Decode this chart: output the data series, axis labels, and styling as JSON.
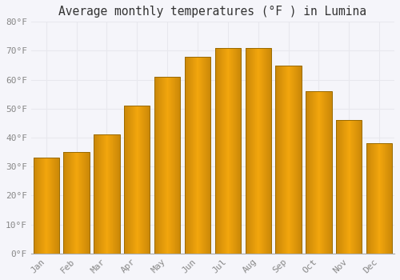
{
  "title": "Average monthly temperatures (°F ) in Lumina",
  "months": [
    "Jan",
    "Feb",
    "Mar",
    "Apr",
    "May",
    "Jun",
    "Jul",
    "Aug",
    "Sep",
    "Oct",
    "Nov",
    "Dec"
  ],
  "values": [
    33,
    35,
    41,
    51,
    61,
    68,
    71,
    71,
    65,
    56,
    46,
    38
  ],
  "bar_color_center": "#FFD040",
  "bar_color_edge": "#E8900A",
  "background_color": "#f5f5fa",
  "grid_color": "#e8e8ee",
  "ylim": [
    0,
    80
  ],
  "ytick_step": 10,
  "title_fontsize": 10.5,
  "tick_fontsize": 8,
  "font_family": "monospace",
  "bar_width": 0.85
}
